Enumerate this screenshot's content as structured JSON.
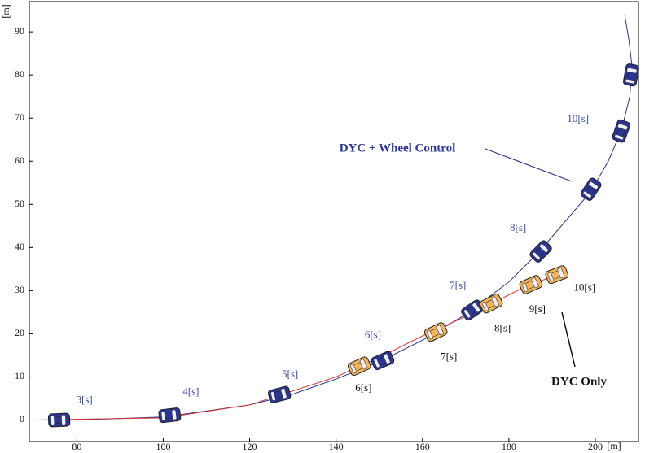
{
  "chart_data": {
    "type": "trajectory",
    "x_label": "[m]",
    "y_label": "[m]",
    "xlim": [
      69,
      210
    ],
    "ylim": [
      -5,
      97
    ],
    "xticks": [
      80,
      100,
      120,
      140,
      160,
      180,
      200
    ],
    "yticks": [
      0,
      10,
      20,
      30,
      40,
      50,
      60,
      70,
      80,
      90
    ],
    "series": [
      {
        "name": "DYC + Wheel Control",
        "color": "#2b3594",
        "line_color": "#2b3594",
        "label_color": "#3a4aa8",
        "x": [
          70,
          80,
          100,
          120,
          130,
          140,
          150,
          160,
          170,
          180,
          187,
          193,
          199,
          203,
          206,
          208,
          208.5,
          207.8,
          206.8
        ],
        "y": [
          0,
          0,
          0.7,
          3.5,
          6,
          9.5,
          13.5,
          18.5,
          24.5,
          32,
          39,
          46,
          53,
          60,
          67,
          75,
          82,
          88,
          94
        ],
        "car_x": [
          75.9,
          101.5,
          126.9,
          150.8,
          171.6,
          187.4,
          199,
          206,
          208.3
        ],
        "car_y": [
          0,
          1.1,
          5.9,
          13.8,
          25.5,
          39.1,
          53.5,
          67,
          80
        ],
        "car_labels": [
          "3[s]",
          "4[s]",
          "5[s]",
          "6[s]",
          "7[s]",
          "8[s]",
          null,
          "10[s]",
          null
        ]
      },
      {
        "name": "DYC Only",
        "color": "#f2b55a",
        "line_color": "#d8302a",
        "label_color": "#111111",
        "x": [
          70,
          100,
          120,
          140,
          150,
          160,
          170,
          176,
          185,
          191
        ],
        "y": [
          0,
          0.5,
          3.5,
          10,
          14.5,
          19.5,
          24,
          27,
          31.5,
          33.5
        ],
        "car_x": [
          145.4,
          163.1,
          175.9,
          185.1,
          191.1
        ],
        "car_y": [
          12.5,
          20.4,
          27,
          31.4,
          33.7
        ],
        "car_labels": [
          "6[s]",
          "7[s]",
          "8[s]",
          "9[s]",
          "10[s]"
        ]
      }
    ]
  }
}
